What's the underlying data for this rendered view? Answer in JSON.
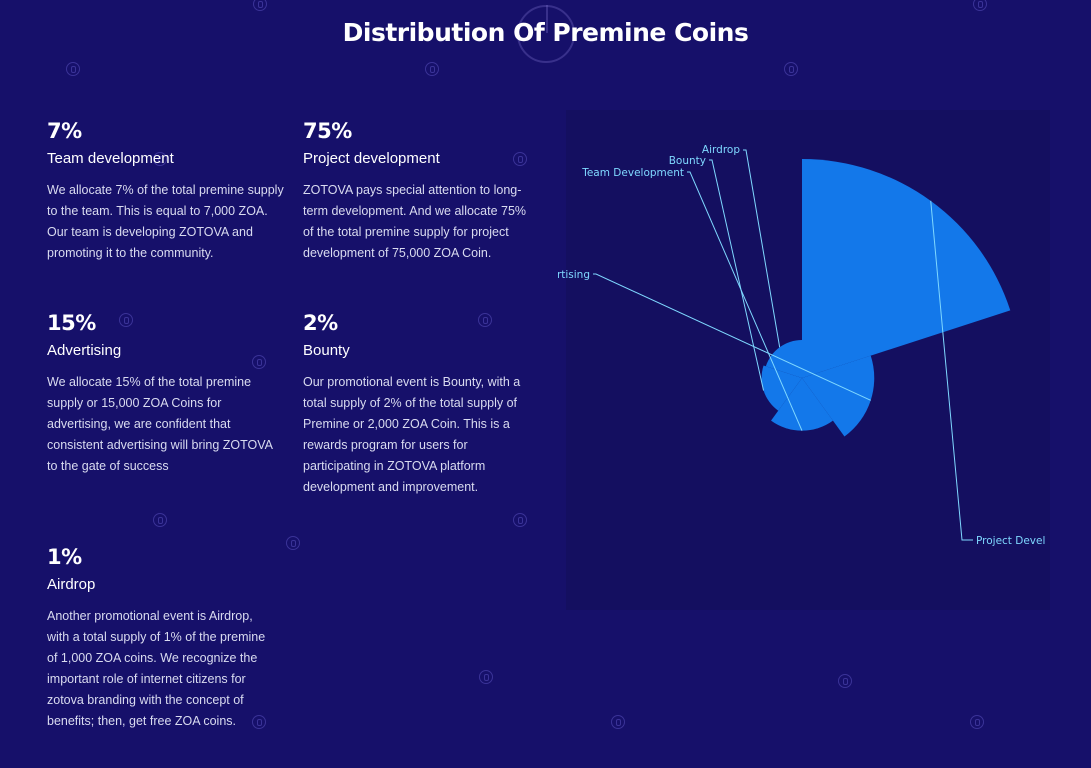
{
  "page": {
    "title": "Distribution Of Premine Coins"
  },
  "cards": [
    {
      "percent": "7%",
      "name": "Team development",
      "description": "We allocate 7% of the total premine supply to the team. This is equal to 7,000 ZOA. Our team is developing ZOTOVA and promoting it to the community."
    },
    {
      "percent": "75%",
      "name": "Project development",
      "description": "ZOTOVA pays special attention to long-term development. And we allocate 75% of the total premine supply for project development of 75,000 ZOA Coin."
    },
    {
      "percent": "15%",
      "name": "Advertising",
      "description": "We allocate 15% of the total premine supply or 15,000 ZOA Coins for advertising, we are confident that consistent advertising will bring ZOTOVA to the gate of success"
    },
    {
      "percent": "2%",
      "name": "Bounty",
      "description": "Our promotional event is Bounty, with a total supply of 2% of the total supply of Premine or 2,000 ZOA Coin. This is a rewards program for users for participating in ZOTOVA platform development and improvement."
    },
    {
      "percent": "1%",
      "name": "Airdrop",
      "description": "Another promotional event is Airdrop, with a total supply of 1% of the premine of 1,000 ZOA coins. We recognize the important role of internet citizens for zotova branding with the concept of benefits; then, get free ZOA coins."
    }
  ],
  "chart_data": {
    "type": "pie",
    "subtype": "rose",
    "slices": [
      {
        "label": "Project Development",
        "value": 75
      },
      {
        "label": "Advertising",
        "value": 15
      },
      {
        "label": "Team Development",
        "value": 7
      },
      {
        "label": "Bounty",
        "value": 2
      },
      {
        "label": "Airdrop",
        "value": 1
      }
    ],
    "visible_labels": [
      "Project Devel",
      "rtising",
      "Team Development",
      "Bounty",
      "Airdrop"
    ],
    "color": "#1378ea",
    "label_color": "#7fd8ff"
  },
  "theme": {
    "background": "#16106a",
    "panel": "#140f60",
    "text": "#ffffff"
  }
}
